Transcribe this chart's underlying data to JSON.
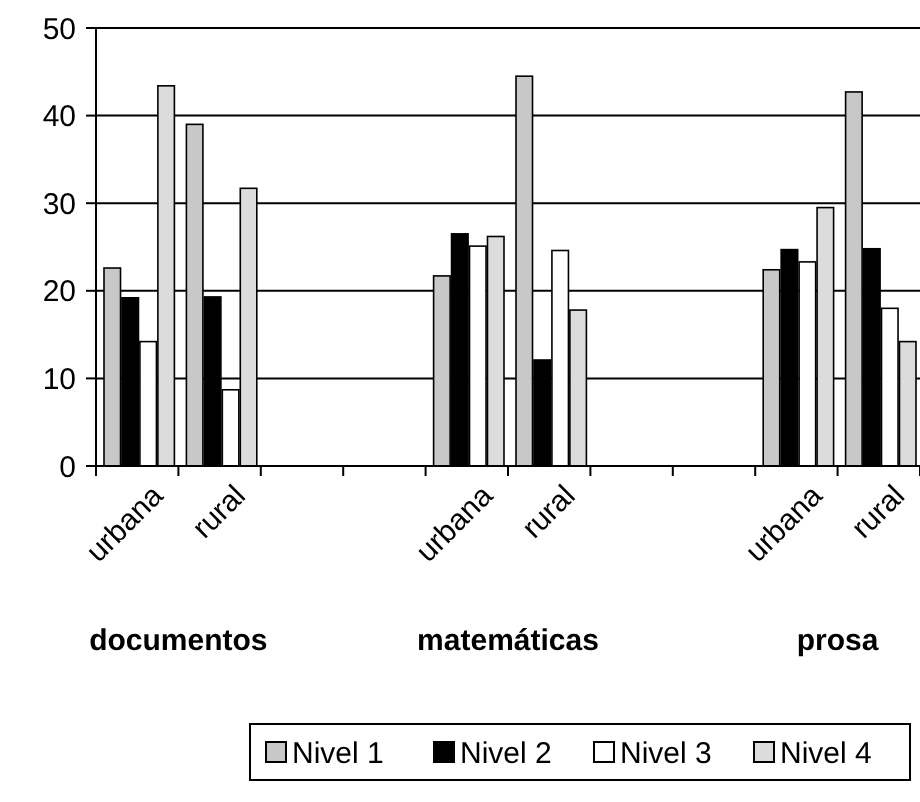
{
  "chart_data": {
    "type": "bar",
    "categories": [
      "urbana",
      "rural",
      null,
      null,
      "urbana",
      "rural",
      null,
      null,
      "urbana",
      "rural"
    ],
    "series": [
      {
        "name": "Nivel 1",
        "color": "#c8c8c8",
        "values": [
          22.6,
          39,
          null,
          null,
          21.7,
          44.5,
          null,
          null,
          22.4,
          42.7
        ]
      },
      {
        "name": "Nivel 2",
        "color": "#000000",
        "values": [
          19.2,
          19.3,
          null,
          null,
          26.5,
          12.1,
          null,
          null,
          24.7,
          24.8
        ]
      },
      {
        "name": "Nivel 3",
        "color": "#ffffff",
        "values": [
          14.2,
          8.7,
          null,
          null,
          25.1,
          24.6,
          null,
          null,
          23.3,
          18
        ]
      },
      {
        "name": "Nivel 4",
        "color": "#dcdcdc",
        "values": [
          43.4,
          31.7,
          null,
          null,
          26.2,
          17.8,
          null,
          null,
          29.5,
          14.2
        ]
      }
    ],
    "ylim": [
      0,
      50
    ],
    "yticks": [
      0,
      10,
      20,
      30,
      40,
      50
    ],
    "grid": "y",
    "legend": "bottom",
    "annotations": [
      "documentos",
      "matemáticas",
      "prosa"
    ]
  }
}
